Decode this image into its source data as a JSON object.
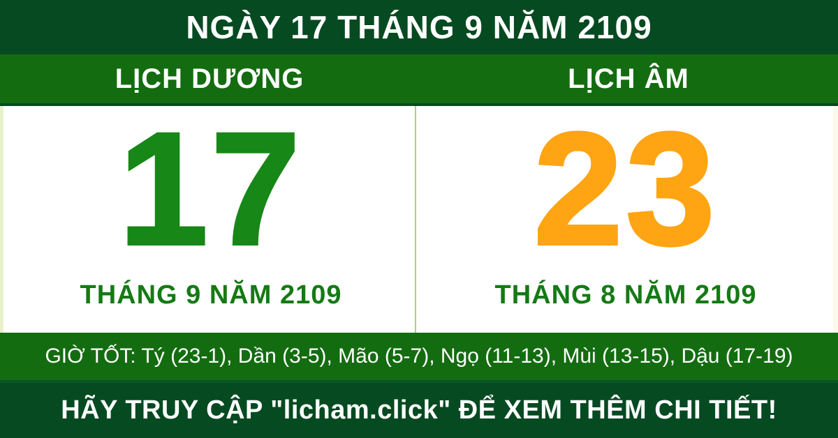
{
  "header": {
    "title": "NGÀY 17 THÁNG 9 NĂM 2109"
  },
  "calendar": {
    "solar": {
      "label": "LỊCH DƯƠNG",
      "day": "17",
      "month_year": "THÁNG 9 NĂM 2109"
    },
    "lunar": {
      "label": "LỊCH ÂM",
      "day": "23",
      "month_year": "THÁNG 8 NĂM 2109"
    }
  },
  "good_hours": {
    "text": "GIỜ TỐT: Tý (23-1), Dần (3-5), Mão (5-7), Ngọ (11-13), Mùi (13-15), Dậu (17-19)"
  },
  "footer": {
    "text": "HÃY TRUY CẬP \"licham.click\" ĐỂ XEM THÊM CHI TIẾT!"
  },
  "colors": {
    "dark_green": "#064a21",
    "green": "#146c10",
    "solar_color": "#178717",
    "lunar_color": "#ffa412",
    "month_color": "#157a15",
    "divider_color": "#a8d671",
    "panel_bg": "#ffffff",
    "text_white": "#ffffff"
  }
}
